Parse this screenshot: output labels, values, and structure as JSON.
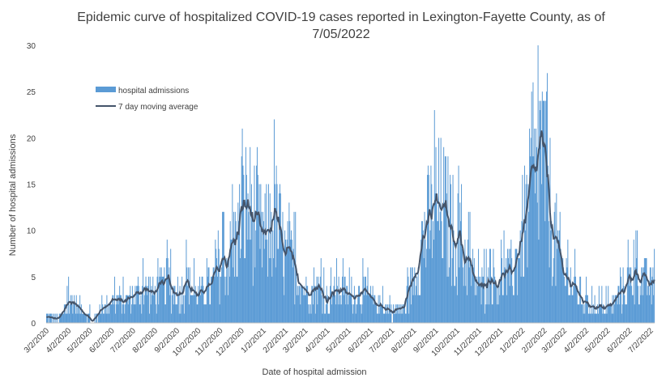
{
  "chart_data": {
    "type": "bar",
    "title_line1": "Epidemic curve of hospitalized COVID-19 cases reported in Lexington-Fayette County, as of",
    "title_line2": "7/05/2022",
    "xlabel": "Date of hospital admission",
    "ylabel": "Number of hospital admissions",
    "ylim": [
      0,
      30
    ],
    "yticks": [
      0,
      5,
      10,
      15,
      20,
      25,
      30
    ],
    "x_tick_labels": [
      "3/2/2020",
      "4/2/2020",
      "5/2/2020",
      "6/2/2020",
      "7/2/2020",
      "8/2/2020",
      "9/2/2020",
      "10/2/2020",
      "11/2/2020",
      "12/2/2020",
      "1/2/2021",
      "2/2/2021",
      "3/2/2021",
      "4/2/2021",
      "5/2/2021",
      "6/2/2021",
      "7/2/2021",
      "8/2/2021",
      "9/2/2021",
      "10/2/2021",
      "11/2/2021",
      "12/2/2021",
      "1/2/2022",
      "2/2/2022",
      "3/2/2022",
      "4/2/2022",
      "5/2/2022",
      "6/2/2022",
      "7/2/2022"
    ],
    "grid": false,
    "legend_position": "top-left",
    "series": [
      {
        "name": "hospital admissions",
        "type": "bar",
        "color": "#5b9bd5"
      },
      {
        "name": "7 day moving average",
        "type": "line",
        "color": "#44546a"
      }
    ],
    "moving_average_approx": [
      {
        "date": "3/2/2020",
        "value": 0.5
      },
      {
        "date": "3/20/2020",
        "value": 0.5
      },
      {
        "date": "4/2/2020",
        "value": 2
      },
      {
        "date": "4/10/2020",
        "value": 2.3
      },
      {
        "date": "4/25/2020",
        "value": 1
      },
      {
        "date": "5/5/2020",
        "value": 0.2
      },
      {
        "date": "5/15/2020",
        "value": 1
      },
      {
        "date": "6/2/2020",
        "value": 2.5
      },
      {
        "date": "6/20/2020",
        "value": 2.2
      },
      {
        "date": "7/2/2020",
        "value": 3
      },
      {
        "date": "7/20/2020",
        "value": 3.5
      },
      {
        "date": "8/2/2020",
        "value": 3.3
      },
      {
        "date": "8/20/2020",
        "value": 4.3
      },
      {
        "date": "9/2/2020",
        "value": 3.2
      },
      {
        "date": "9/15/2020",
        "value": 4.2
      },
      {
        "date": "10/2/2020",
        "value": 2.8
      },
      {
        "date": "10/20/2020",
        "value": 4
      },
      {
        "date": "11/2/2020",
        "value": 5.5
      },
      {
        "date": "11/20/2020",
        "value": 8
      },
      {
        "date": "12/2/2020",
        "value": 11
      },
      {
        "date": "12/10/2020",
        "value": 13
      },
      {
        "date": "12/25/2020",
        "value": 10
      },
      {
        "date": "1/5/2021",
        "value": 9
      },
      {
        "date": "1/18/2021",
        "value": 11.8
      },
      {
        "date": "2/2/2021",
        "value": 7
      },
      {
        "date": "2/15/2021",
        "value": 6
      },
      {
        "date": "3/2/2021",
        "value": 3.5
      },
      {
        "date": "3/20/2021",
        "value": 3.8
      },
      {
        "date": "4/2/2021",
        "value": 2.5
      },
      {
        "date": "4/20/2021",
        "value": 3.5
      },
      {
        "date": "5/2/2021",
        "value": 2.8
      },
      {
        "date": "5/20/2021",
        "value": 3.3
      },
      {
        "date": "6/2/2021",
        "value": 2.5
      },
      {
        "date": "6/20/2021",
        "value": 1.5
      },
      {
        "date": "7/2/2021",
        "value": 1.2
      },
      {
        "date": "7/20/2021",
        "value": 1.8
      },
      {
        "date": "8/2/2021",
        "value": 5
      },
      {
        "date": "8/15/2021",
        "value": 9
      },
      {
        "date": "9/2/2021",
        "value": 12.5
      },
      {
        "date": "9/15/2021",
        "value": 12
      },
      {
        "date": "10/2/2021",
        "value": 9
      },
      {
        "date": "10/20/2021",
        "value": 6
      },
      {
        "date": "11/2/2021",
        "value": 3.5
      },
      {
        "date": "11/20/2021",
        "value": 4
      },
      {
        "date": "12/2/2021",
        "value": 4.5
      },
      {
        "date": "12/20/2021",
        "value": 5.5
      },
      {
        "date": "1/2/2022",
        "value": 9.5
      },
      {
        "date": "1/12/2022",
        "value": 13
      },
      {
        "date": "1/22/2022",
        "value": 15
      },
      {
        "date": "1/28/2022",
        "value": 19.8
      },
      {
        "date": "2/5/2022",
        "value": 15
      },
      {
        "date": "2/15/2022",
        "value": 10
      },
      {
        "date": "3/2/2022",
        "value": 5
      },
      {
        "date": "3/20/2022",
        "value": 3.5
      },
      {
        "date": "4/2/2022",
        "value": 2
      },
      {
        "date": "4/20/2022",
        "value": 1.5
      },
      {
        "date": "5/2/2022",
        "value": 1.5
      },
      {
        "date": "5/20/2022",
        "value": 3
      },
      {
        "date": "6/2/2022",
        "value": 4.5
      },
      {
        "date": "6/20/2022",
        "value": 5
      },
      {
        "date": "7/2/2022",
        "value": 4
      }
    ],
    "notable_bar_peaks": [
      {
        "date": "12/2/2020",
        "value": 18
      },
      {
        "date": "9/2/2021",
        "value": 19
      },
      {
        "date": "1/28/2022",
        "value": 24
      }
    ]
  }
}
